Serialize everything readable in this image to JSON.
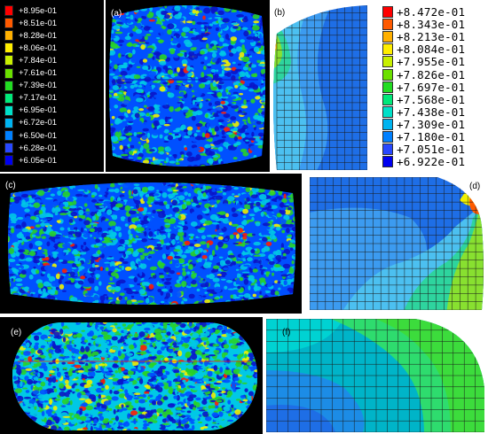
{
  "legend_left": {
    "labels": [
      "+8.95e-01",
      "+8.51e-01",
      "+8.28e-01",
      "+8.06e-01",
      "+7.84e-01",
      "+7.61e-01",
      "+7.39e-01",
      "+7.17e-01",
      "+6.95e-01",
      "+6.72e-01",
      "+6.50e-01",
      "+6.28e-01",
      "+6.05e-01"
    ],
    "colors": [
      "#ff0000",
      "#ff5a00",
      "#ffb000",
      "#ffee00",
      "#c8f000",
      "#6be000",
      "#22dc22",
      "#00e87a",
      "#00e0c8",
      "#00b4f0",
      "#0080ff",
      "#2848ff",
      "#0000f0"
    ]
  },
  "legend_right": {
    "labels": [
      "+8.472e-01",
      "+8.343e-01",
      "+8.213e-01",
      "+8.084e-01",
      "+7.955e-01",
      "+7.826e-01",
      "+7.697e-01",
      "+7.568e-01",
      "+7.438e-01",
      "+7.309e-01",
      "+7.180e-01",
      "+7.051e-01",
      "+6.922e-01"
    ],
    "colors": [
      "#ff0000",
      "#ff5a00",
      "#ffb000",
      "#ffee00",
      "#c8f000",
      "#6be000",
      "#22dc22",
      "#00e87a",
      "#00e0c8",
      "#00b4f0",
      "#0080ff",
      "#2848ff",
      "#0000f0"
    ]
  },
  "panels": {
    "a": {
      "label": "(a)"
    },
    "b": {
      "label": "(b)"
    },
    "c": {
      "label": "(c)"
    },
    "d": {
      "label": "(d)"
    },
    "e": {
      "label": "(e)"
    },
    "f": {
      "label": "(f)"
    }
  },
  "colors": {
    "blue_deep": "#0a14c8",
    "blue": "#0050ff",
    "cyan": "#00c8e6",
    "green": "#28d228",
    "yellow": "#f0f000",
    "red": "#ff1e00",
    "background_dark": "#000000"
  }
}
